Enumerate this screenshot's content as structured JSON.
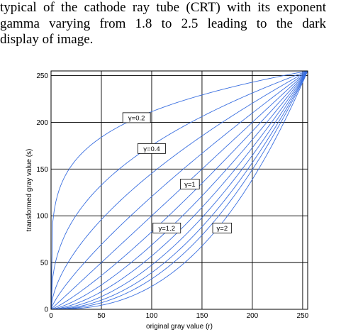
{
  "text": {
    "line1": "typical of the cathode ray tube (CRT) with its exponent",
    "line2": "gamma varying from 1.8 to 2.5 leading to the dark",
    "line3": "display of image."
  },
  "chart_data": {
    "type": "line",
    "xlabel": "original gray value (r)",
    "ylabel": "transformed gray value (s)",
    "xlim": [
      0,
      255
    ],
    "ylim": [
      0,
      255
    ],
    "xticks": [
      0,
      50,
      100,
      150,
      200,
      250
    ],
    "yticks": [
      0,
      50,
      100,
      150,
      200,
      250
    ],
    "grid": true,
    "line_color": "#3a6fe0",
    "series_model": "s = 255 * (r/255)^gamma",
    "gammas": [
      0.2,
      0.4,
      0.6,
      0.8,
      1.0,
      1.2,
      1.4,
      1.6,
      1.8,
      2.0,
      2.2,
      2.5
    ],
    "annotations": [
      {
        "text": "γ=0.2",
        "x": 85,
        "y": 205
      },
      {
        "text": "γ=0.4",
        "x": 100,
        "y": 172
      },
      {
        "text": "γ=1",
        "x": 138,
        "y": 134
      },
      {
        "text": "γ=1.2",
        "x": 115,
        "y": 87
      },
      {
        "text": "γ=2",
        "x": 170,
        "y": 87
      }
    ]
  }
}
